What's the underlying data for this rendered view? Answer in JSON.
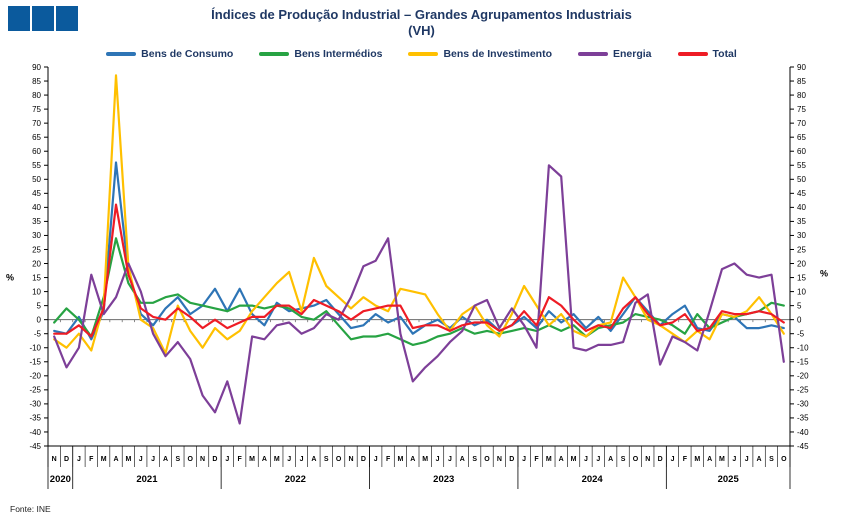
{
  "logo": {
    "squares": 3,
    "color": "#0B5A9D"
  },
  "title": {
    "line1": "Índices de Produção Industrial – Grandes Agrupamentos Industriais",
    "line2": "(VH)",
    "color": "#1F3864"
  },
  "source": "Fonte: INE",
  "chart_data": {
    "type": "line",
    "title": "Índices de Produção Industrial – Grandes Agrupamentos Industriais (VH)",
    "y_unit": "%",
    "ylim": [
      -45,
      90
    ],
    "ytick_step": 5,
    "dual_y_axis": true,
    "grid": "zero-line-only",
    "legend_position": "top",
    "x_labels": [
      "N",
      "D",
      "J",
      "F",
      "M",
      "A",
      "M",
      "J",
      "J",
      "A",
      "S",
      "O",
      "N",
      "D",
      "J",
      "F",
      "M",
      "A",
      "M",
      "J",
      "J",
      "A",
      "S",
      "O",
      "N",
      "D",
      "J",
      "F",
      "M",
      "A",
      "M",
      "J",
      "J",
      "A",
      "S",
      "O",
      "N",
      "D",
      "J",
      "F",
      "M",
      "A",
      "M",
      "J",
      "J",
      "A",
      "S",
      "O",
      "N",
      "D",
      "J",
      "F",
      "M",
      "A",
      "M",
      "J",
      "J",
      "A",
      "S",
      "O"
    ],
    "year_groups": [
      {
        "label": "2020",
        "count": 2
      },
      {
        "label": "2021",
        "count": 12
      },
      {
        "label": "2022",
        "count": 12
      },
      {
        "label": "2023",
        "count": 12
      },
      {
        "label": "2024",
        "count": 12
      },
      {
        "label": "2025",
        "count": 10
      }
    ],
    "series": [
      {
        "name": "Bens de Consumo",
        "color": "#2E75B6",
        "values": [
          -4,
          -5,
          1,
          -7,
          3,
          56,
          17,
          2,
          -2,
          4,
          8,
          2,
          5,
          11,
          3,
          11,
          2,
          -2,
          6,
          3,
          4,
          5,
          7,
          2,
          -3,
          -2,
          2,
          -1,
          1,
          -5,
          -2,
          0,
          -3,
          1,
          -2,
          0,
          -4,
          -2,
          1,
          -3,
          3,
          -1,
          2,
          -3,
          1,
          -4,
          2,
          8,
          3,
          -2,
          2,
          5,
          -3,
          -4,
          2,
          1,
          -3,
          -3,
          -2,
          -3
        ]
      },
      {
        "name": "Bens Intermédios",
        "color": "#27A343",
        "values": [
          -1,
          4,
          0,
          -6,
          8,
          29,
          13,
          6,
          6,
          8,
          9,
          6,
          5,
          4,
          3,
          5,
          5,
          4,
          5,
          4,
          1,
          0,
          3,
          -2,
          -7,
          -6,
          -6,
          -5,
          -7,
          -9,
          -8,
          -6,
          -5,
          -3,
          -5,
          -4,
          -5,
          -4,
          -3,
          -4,
          -2,
          -4,
          -2,
          -6,
          -3,
          -2,
          -1,
          2,
          1,
          0,
          -2,
          -5,
          2,
          -3,
          -1,
          1,
          2,
          3,
          6,
          5
        ]
      },
      {
        "name": "Bens de Investimento",
        "color": "#FFC000",
        "values": [
          -7,
          -10,
          -5,
          -11,
          5,
          87,
          19,
          0,
          -3,
          -12,
          5,
          -4,
          -10,
          -3,
          -7,
          -4,
          3,
          8,
          13,
          17,
          3,
          22,
          12,
          8,
          4,
          8,
          5,
          3,
          11,
          10,
          9,
          2,
          -4,
          2,
          5,
          -2,
          -6,
          2,
          12,
          5,
          -2,
          2,
          -4,
          -6,
          -2,
          -1,
          15,
          8,
          0,
          -2,
          -5,
          -8,
          -4,
          -7,
          2,
          1,
          3,
          8,
          2,
          -5
        ]
      },
      {
        "name": "Energia",
        "color": "#7D3F98",
        "values": [
          -6,
          -17,
          -10,
          16,
          2,
          8,
          20,
          10,
          -5,
          -13,
          -8,
          -14,
          -27,
          -33,
          -22,
          -37,
          -6,
          -7,
          -2,
          -1,
          -5,
          -3,
          2,
          0,
          8,
          19,
          21,
          29,
          -5,
          -22,
          -17,
          -13,
          -8,
          -4,
          5,
          7,
          -3,
          4,
          -2,
          -10,
          55,
          51,
          -10,
          -11,
          -9,
          -9,
          -8,
          6,
          9,
          -16,
          -6,
          -8,
          -11,
          3,
          18,
          20,
          16,
          15,
          16,
          -15
        ]
      },
      {
        "name": "Total",
        "color": "#EE1C25",
        "values": [
          -5,
          -5,
          -2,
          -6,
          4,
          41,
          16,
          4,
          1,
          0,
          4,
          1,
          -3,
          0,
          -3,
          -1,
          1,
          1,
          5,
          5,
          2,
          7,
          5,
          3,
          0,
          3,
          4,
          5,
          5,
          -3,
          -2,
          -2,
          -4,
          -2,
          -1,
          -1,
          -4,
          -2,
          3,
          -2,
          8,
          5,
          0,
          -4,
          -2,
          -3,
          4,
          8,
          2,
          -2,
          -1,
          2,
          -4,
          -3,
          3,
          2,
          2,
          3,
          2,
          -1
        ]
      }
    ]
  }
}
